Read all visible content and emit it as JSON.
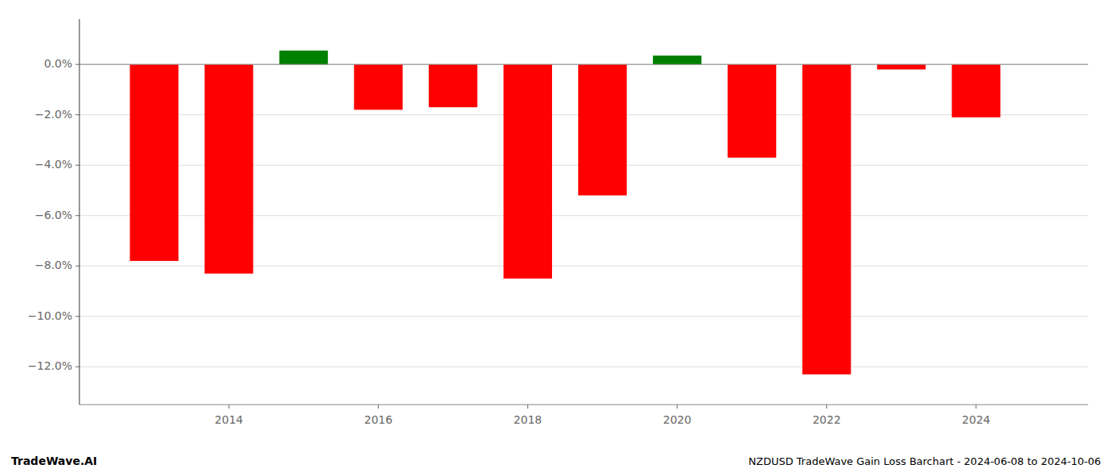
{
  "chart_data": {
    "type": "bar",
    "title": "NZDUSD TradeWave Gain Loss Barchart - 2024-06-08 to 2024-10-06",
    "annotations": [
      "TradeWave.AI"
    ],
    "x": [
      2013,
      2014,
      2015,
      2016,
      2017,
      2018,
      2019,
      2020,
      2021,
      2022,
      2023,
      2024
    ],
    "values": [
      -0.078,
      -0.083,
      0.0055,
      -0.018,
      -0.017,
      -0.085,
      -0.052,
      0.0035,
      -0.037,
      -0.123,
      -0.002,
      -0.021
    ],
    "colors": [
      "#ff0000",
      "#ff0000",
      "#008000",
      "#ff0000",
      "#ff0000",
      "#ff0000",
      "#ff0000",
      "#008000",
      "#ff0000",
      "#ff0000",
      "#ff0000",
      "#ff0000"
    ],
    "xlim": [
      2012.0,
      2025.5
    ],
    "xticks": [
      2014,
      2016,
      2018,
      2020,
      2022,
      2024
    ],
    "ylim": [
      -0.135,
      0.018
    ],
    "yticks": [
      {
        "value": 0.0,
        "label": "0.0%"
      },
      {
        "value": -0.02,
        "label": "−2.0%"
      },
      {
        "value": -0.04,
        "label": "−4.0%"
      },
      {
        "value": -0.06,
        "label": "−6.0%"
      },
      {
        "value": -0.08,
        "label": "−8.0%"
      },
      {
        "value": -0.1,
        "label": "−10.0%"
      },
      {
        "value": -0.12,
        "label": "−12.0%"
      }
    ],
    "grid": true
  }
}
